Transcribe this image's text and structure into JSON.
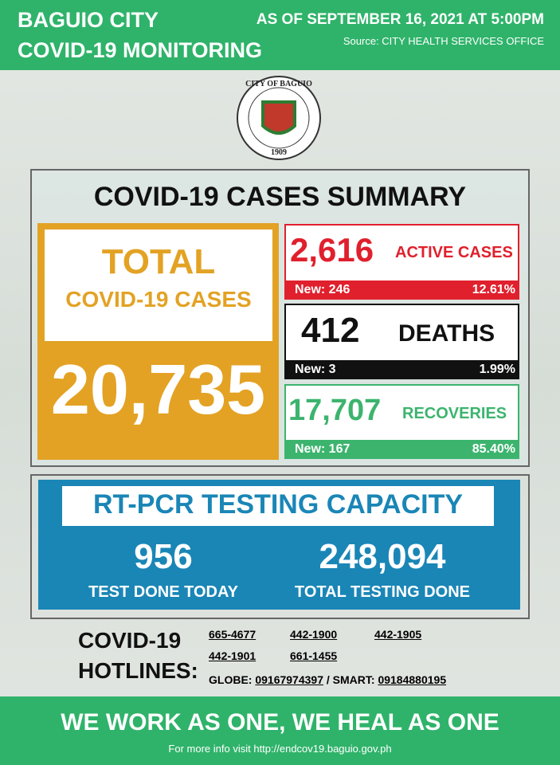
{
  "header": {
    "city": "BAGUIO CITY",
    "subtitle": "COVID-19 MONITORING",
    "as_of": "AS OF SEPTEMBER 16, 2021 AT 5:00PM",
    "source": "Source: CITY HEALTH SERVICES OFFICE"
  },
  "seal": {
    "text": "CITY OF BAGUIO",
    "year": "1909"
  },
  "summary": {
    "title": "COVID-19 CASES SUMMARY",
    "total": {
      "label_1": "TOTAL",
      "label_2": "COVID-19 CASES",
      "value": "20,735"
    },
    "active": {
      "value": "2,616",
      "label": "ACTIVE CASES",
      "new": "New: 246",
      "percent": "12.61%"
    },
    "deaths": {
      "value": "412",
      "label": "DEATHS",
      "new": "New: 3",
      "percent": "1.99%"
    },
    "recoveries": {
      "value": "17,707",
      "label": "RECOVERIES",
      "new": "New: 167",
      "percent": "85.40%"
    }
  },
  "testing": {
    "title": "RT-PCR TESTING CAPACITY",
    "today_value": "956",
    "today_label": "TEST DONE TODAY",
    "total_value": "248,094",
    "total_label": "TOTAL TESTING DONE"
  },
  "hotlines": {
    "label_1": "COVID-19",
    "label_2": "HOTLINES:",
    "numbers": [
      "665-4677",
      "442-1900",
      "442-1905",
      "442-1901",
      "661-1455"
    ],
    "globe_label": "GLOBE:",
    "globe": "09167974397",
    "smart_label": "/ SMART:",
    "smart": "09184880195"
  },
  "footer": {
    "slogan": "WE WORK AS ONE, WE HEAL AS ONE",
    "info": "For more info visit http://endcov19.baguio.gov.ph"
  }
}
